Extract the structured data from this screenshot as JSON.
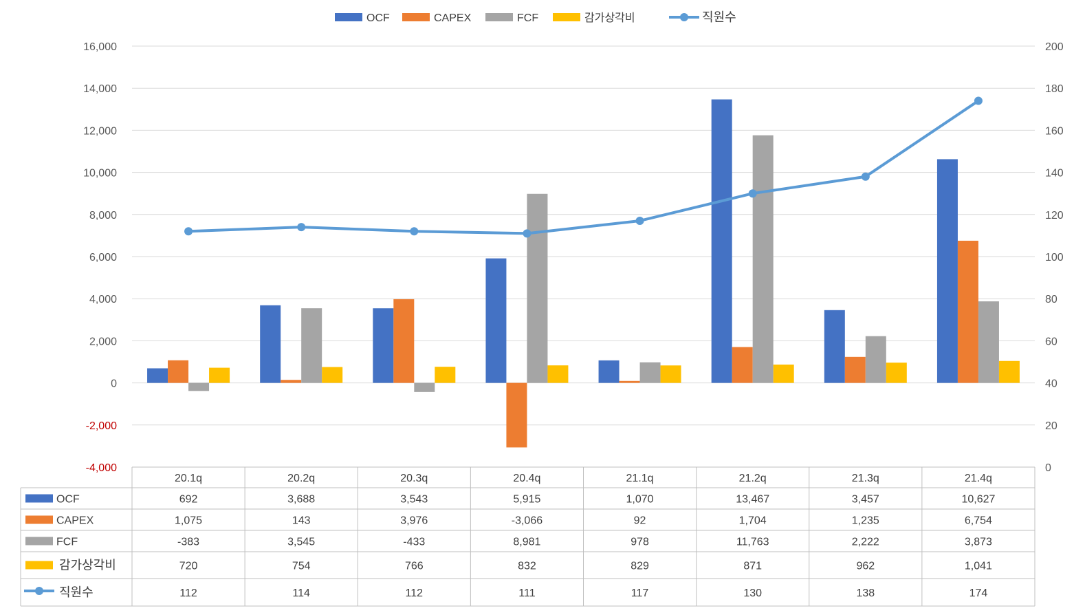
{
  "chart_data": {
    "type": "bar",
    "categories": [
      "20.1q",
      "20.2q",
      "20.3q",
      "20.4q",
      "21.1q",
      "21.2q",
      "21.3q",
      "21.4q"
    ],
    "series": [
      {
        "name": "OCF",
        "type": "bar",
        "axis": "left",
        "color": "#4472C4",
        "values": [
          692,
          3688,
          3543,
          5915,
          1070,
          13467,
          3457,
          10627
        ],
        "labels": [
          "692",
          "3,688",
          "3,543",
          "5,915",
          "1,070",
          "13,467",
          "3,457",
          "10,627"
        ]
      },
      {
        "name": "CAPEX",
        "type": "bar",
        "axis": "left",
        "color": "#ED7D31",
        "values": [
          1075,
          143,
          3976,
          -3066,
          92,
          1704,
          1235,
          6754
        ],
        "labels": [
          "1,075",
          "143",
          "3,976",
          "-3,066",
          "92",
          "1,704",
          "1,235",
          "6,754"
        ]
      },
      {
        "name": "FCF",
        "type": "bar",
        "axis": "left",
        "color": "#A5A5A5",
        "values": [
          -383,
          3545,
          -433,
          8981,
          978,
          11763,
          2222,
          3873
        ],
        "labels": [
          "-383",
          "3,545",
          "-433",
          "8,981",
          "978",
          "11,763",
          "2,222",
          "3,873"
        ]
      },
      {
        "name": "감가상각비",
        "type": "bar",
        "axis": "left",
        "color": "#FFC000",
        "values": [
          720,
          754,
          766,
          832,
          829,
          871,
          962,
          1041
        ],
        "labels": [
          "720",
          "754",
          "766",
          "832",
          "829",
          "871",
          "962",
          "1,041"
        ]
      },
      {
        "name": "직원수",
        "type": "line",
        "axis": "right",
        "color": "#5B9BD5",
        "values": [
          112,
          114,
          112,
          111,
          117,
          130,
          138,
          174
        ],
        "labels": [
          "112",
          "114",
          "112",
          "111",
          "117",
          "130",
          "138",
          "174"
        ]
      }
    ],
    "y_left": {
      "min": -4000,
      "max": 16000,
      "step": 2000,
      "ticks": [
        "-4,000",
        "-2,000",
        "0",
        "2,000",
        "4,000",
        "6,000",
        "8,000",
        "10,000",
        "12,000",
        "14,000",
        "16,000"
      ],
      "negative_tick_color": "#C00000"
    },
    "y_right": {
      "min": 0,
      "max": 200,
      "step": 20,
      "ticks": [
        "0",
        "20",
        "40",
        "60",
        "80",
        "100",
        "120",
        "140",
        "160",
        "180",
        "200"
      ]
    },
    "legend_position": "top-center",
    "grid": true,
    "data_table": true
  }
}
